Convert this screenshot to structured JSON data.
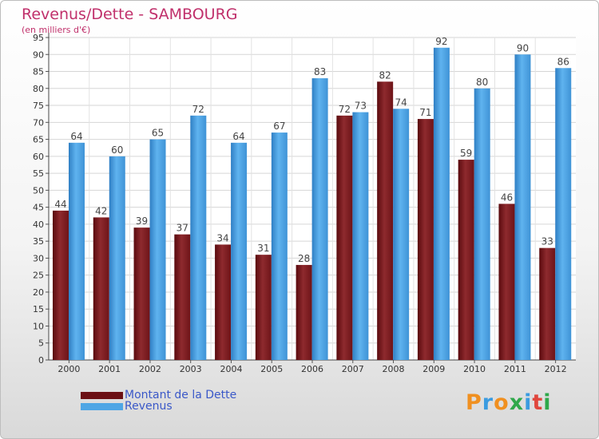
{
  "header": {
    "title": "Revenus/Dette - SAMBOURG",
    "subtitle": "(en milliers d'€)"
  },
  "legend": {
    "items": [
      {
        "label": "Montant de la Dette",
        "color": "#6b1014"
      },
      {
        "label": "Revenus",
        "color": "#4fa6e5"
      }
    ]
  },
  "logo": {
    "text": "Proxiti",
    "colors": [
      "#f09020",
      "#3a9be0",
      "#f09020",
      "#2fa84a",
      "#3a9be0",
      "#e0463c",
      "#2fa84a"
    ]
  },
  "chart_data": {
    "type": "bar",
    "title": "Revenus/Dette - SAMBOURG",
    "ylabel": "(en milliers d'€)",
    "xlabel": "",
    "categories": [
      "2000",
      "2001",
      "2002",
      "2003",
      "2004",
      "2005",
      "2006",
      "2007",
      "2008",
      "2009",
      "2010",
      "2011",
      "2012"
    ],
    "series": [
      {
        "name": "Montant de la Dette",
        "values": [
          44,
          42,
          39,
          37,
          34,
          31,
          28,
          72,
          82,
          71,
          59,
          46,
          33
        ]
      },
      {
        "name": "Revenus",
        "values": [
          64,
          60,
          65,
          72,
          64,
          67,
          83,
          73,
          74,
          92,
          80,
          90,
          86
        ]
      }
    ],
    "ylim": [
      0,
      95
    ],
    "ytick_step": 5,
    "grid": true,
    "legend_position": "bottom-left"
  }
}
